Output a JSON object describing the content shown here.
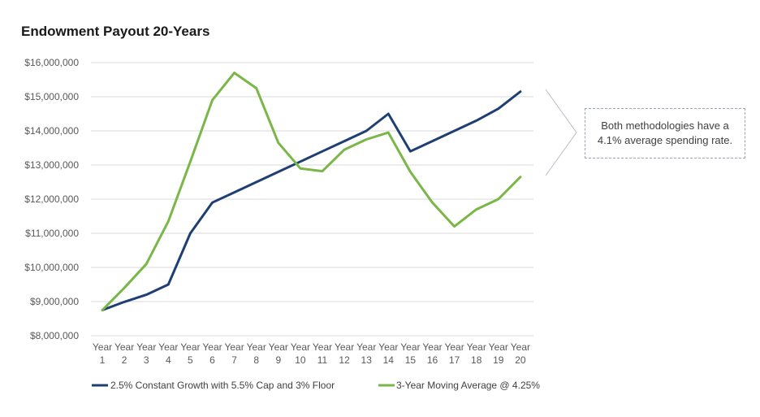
{
  "chart_data": {
    "type": "line",
    "title": "Endowment Payout 20-Years",
    "xlabel": "",
    "ylabel": "",
    "ylim": [
      8000000,
      16000000
    ],
    "yticks": [
      "$8,000,000",
      "$9,000,000",
      "$10,000,000",
      "$11,000,000",
      "$12,000,000",
      "$13,000,000",
      "$14,000,000",
      "$15,000,000",
      "$16,000,000"
    ],
    "ytick_values": [
      8000000,
      9000000,
      10000000,
      11000000,
      12000000,
      13000000,
      14000000,
      15000000,
      16000000
    ],
    "categories": [
      {
        "word": "Year",
        "num": "1"
      },
      {
        "word": "Year",
        "num": "2"
      },
      {
        "word": "Year",
        "num": "3"
      },
      {
        "word": "Year",
        "num": "4"
      },
      {
        "word": "Year",
        "num": "5"
      },
      {
        "word": "Year",
        "num": "6"
      },
      {
        "word": "Year",
        "num": "7"
      },
      {
        "word": "Year",
        "num": "8"
      },
      {
        "word": "Year",
        "num": "9"
      },
      {
        "word": "Year",
        "num": "10"
      },
      {
        "word": "Year",
        "num": "11"
      },
      {
        "word": "Year",
        "num": "12"
      },
      {
        "word": "Year",
        "num": "13"
      },
      {
        "word": "Year",
        "num": "14"
      },
      {
        "word": "Year",
        "num": "15"
      },
      {
        "word": "Year",
        "num": "16"
      },
      {
        "word": "Year",
        "num": "17"
      },
      {
        "word": "Year",
        "num": "18"
      },
      {
        "word": "Year",
        "num": "19"
      },
      {
        "word": "Year",
        "num": "20"
      }
    ],
    "grid": true,
    "legend_position": "bottom",
    "series": [
      {
        "name": "2.5% Constant Growth with 5.5% Cap and 3% Floor",
        "color": "#1f3f73",
        "values": [
          8750000,
          8990000,
          9200000,
          9500000,
          11000000,
          11900000,
          12200000,
          12500000,
          12800000,
          13100000,
          13400000,
          13700000,
          14000000,
          14500000,
          13400000,
          13700000,
          14000000,
          14300000,
          14650000,
          15150000
        ]
      },
      {
        "name": "3-Year Moving Average @ 4.25%",
        "color": "#7ab648",
        "values": [
          8750000,
          9400000,
          10100000,
          11350000,
          13100000,
          14900000,
          15700000,
          15250000,
          13650000,
          12900000,
          12820000,
          13450000,
          13750000,
          13950000,
          12800000,
          11900000,
          11200000,
          11700000,
          12000000,
          12650000
        ]
      }
    ],
    "annotation": "Both methodologies have a 4.1% average spending rate."
  }
}
